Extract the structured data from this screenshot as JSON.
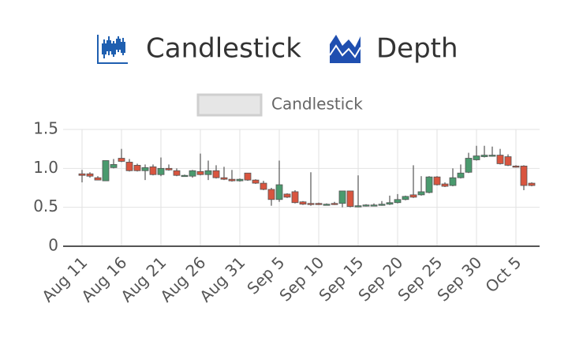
{
  "tabs": [
    "Candlestick",
    "Depth"
  ],
  "chart_data": {
    "type": "candlestick",
    "categories": [
      "Aug 11",
      null,
      null,
      null,
      null,
      "Aug 16",
      null,
      null,
      null,
      null,
      "Aug 21",
      null,
      null,
      null,
      null,
      "Aug 26",
      null,
      null,
      null,
      null,
      "Aug 31",
      null,
      null,
      null,
      null,
      "Sep 5",
      null,
      null,
      null,
      null,
      "Sep 10",
      null,
      null,
      null,
      null,
      "Sep 15",
      null,
      null,
      null,
      null,
      "Sep 20",
      null,
      null,
      null,
      null,
      "Sep 25",
      null,
      null,
      null,
      null,
      "Sep 30",
      null,
      null,
      null,
      null,
      "Oct 5",
      null,
      null
    ],
    "series": [
      {
        "name": "Candlestick",
        "increasing_color": "#4a9a6e",
        "decreasing_color": "#d9553f",
        "open": [
          0.93,
          0.93,
          0.88,
          0.84,
          1.01,
          1.13,
          1.08,
          1.04,
          0.97,
          1.02,
          0.92,
          1.0,
          0.97,
          0.91,
          0.9,
          0.96,
          0.92,
          0.97,
          0.88,
          0.86,
          0.84,
          0.94,
          0.85,
          0.81,
          0.73,
          0.6,
          0.67,
          0.7,
          0.57,
          0.55,
          0.55,
          0.54,
          0.55,
          0.55,
          0.71,
          0.51,
          0.52,
          0.53,
          0.53,
          0.54,
          0.56,
          0.6,
          0.66,
          0.66,
          0.69,
          0.89,
          0.8,
          0.78,
          0.88,
          0.95,
          1.11,
          1.15,
          1.16,
          1.17,
          1.15,
          1.03,
          1.03,
          0.81
        ],
        "high": [
          0.98,
          0.95,
          0.9,
          1.1,
          1.12,
          1.25,
          1.12,
          1.06,
          1.05,
          1.05,
          1.14,
          1.05,
          1.0,
          0.92,
          0.98,
          1.19,
          1.1,
          1.04,
          1.02,
          0.98,
          0.87,
          0.94,
          0.86,
          0.84,
          0.75,
          1.1,
          0.68,
          0.72,
          0.58,
          0.95,
          0.56,
          0.55,
          0.57,
          0.71,
          0.71,
          0.91,
          0.54,
          0.55,
          0.58,
          0.65,
          0.67,
          0.65,
          1.04,
          0.9,
          0.9,
          0.9,
          0.82,
          1.0,
          1.05,
          1.2,
          1.29,
          1.29,
          1.28,
          1.25,
          1.18,
          1.04,
          1.04,
          0.82
        ],
        "low": [
          0.82,
          0.88,
          0.85,
          0.84,
          1.0,
          1.08,
          0.96,
          0.96,
          0.85,
          0.91,
          0.9,
          0.97,
          0.9,
          0.9,
          0.88,
          0.91,
          0.85,
          0.87,
          0.85,
          0.83,
          0.83,
          0.84,
          0.8,
          0.72,
          0.52,
          0.57,
          0.62,
          0.55,
          0.53,
          0.52,
          0.53,
          0.53,
          0.53,
          0.5,
          0.5,
          0.5,
          0.51,
          0.52,
          0.52,
          0.53,
          0.55,
          0.59,
          0.62,
          0.65,
          0.68,
          0.78,
          0.76,
          0.77,
          0.87,
          0.94,
          1.1,
          1.14,
          1.15,
          1.05,
          1.03,
          1.01,
          0.72,
          0.77
        ],
        "close": [
          0.91,
          0.9,
          0.85,
          1.1,
          1.05,
          1.09,
          0.97,
          0.97,
          1.01,
          0.92,
          1.0,
          0.98,
          0.91,
          0.91,
          0.97,
          0.92,
          0.97,
          0.88,
          0.86,
          0.84,
          0.86,
          0.85,
          0.81,
          0.73,
          0.6,
          0.79,
          0.63,
          0.56,
          0.54,
          0.54,
          0.54,
          0.54,
          0.54,
          0.71,
          0.51,
          0.52,
          0.53,
          0.53,
          0.54,
          0.56,
          0.6,
          0.64,
          0.63,
          0.7,
          0.89,
          0.79,
          0.77,
          0.88,
          0.94,
          1.13,
          1.16,
          1.17,
          1.17,
          1.06,
          1.04,
          1.02,
          0.78,
          0.78
        ]
      }
    ],
    "ylim": [
      0,
      1.5
    ],
    "yticks": [
      0,
      0.5,
      {
        "value": 1,
        "label": "1.0"
      },
      1.5
    ],
    "grid": true,
    "legend": "top"
  }
}
